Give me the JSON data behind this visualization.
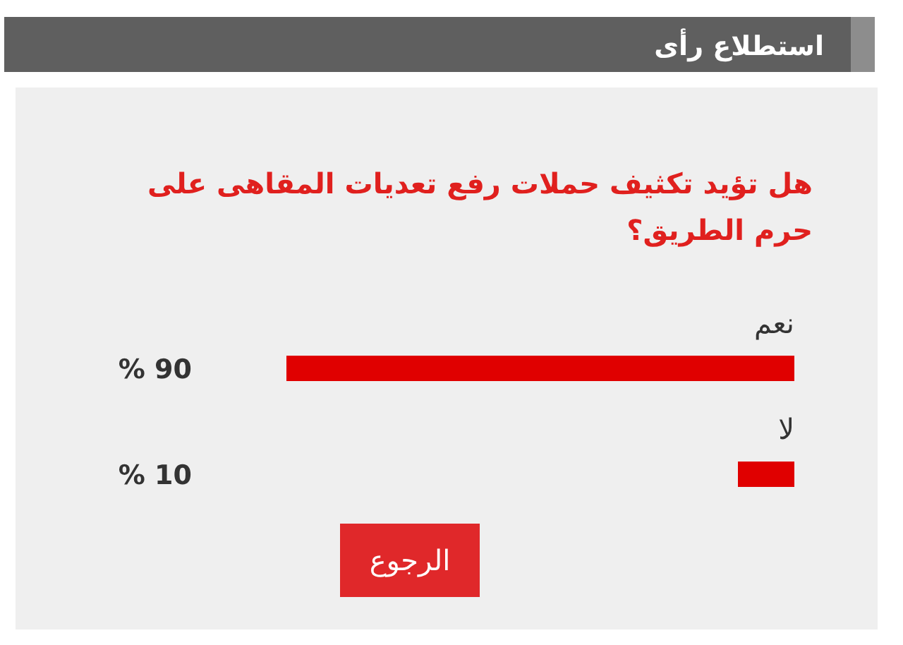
{
  "chart_data": {
    "type": "bar",
    "orientation": "horizontal",
    "title": "استطلاع رأى",
    "subtitle": "هل تؤيد تكثيف حملات رفع تعديات المقاهى على حرم الطريق؟",
    "categories": [
      "نعم",
      "لا"
    ],
    "values": [
      90,
      10
    ],
    "value_labels": [
      "% 90",
      "% 10"
    ],
    "color": "#e00000",
    "annotations": [
      "الرجوع"
    ]
  }
}
